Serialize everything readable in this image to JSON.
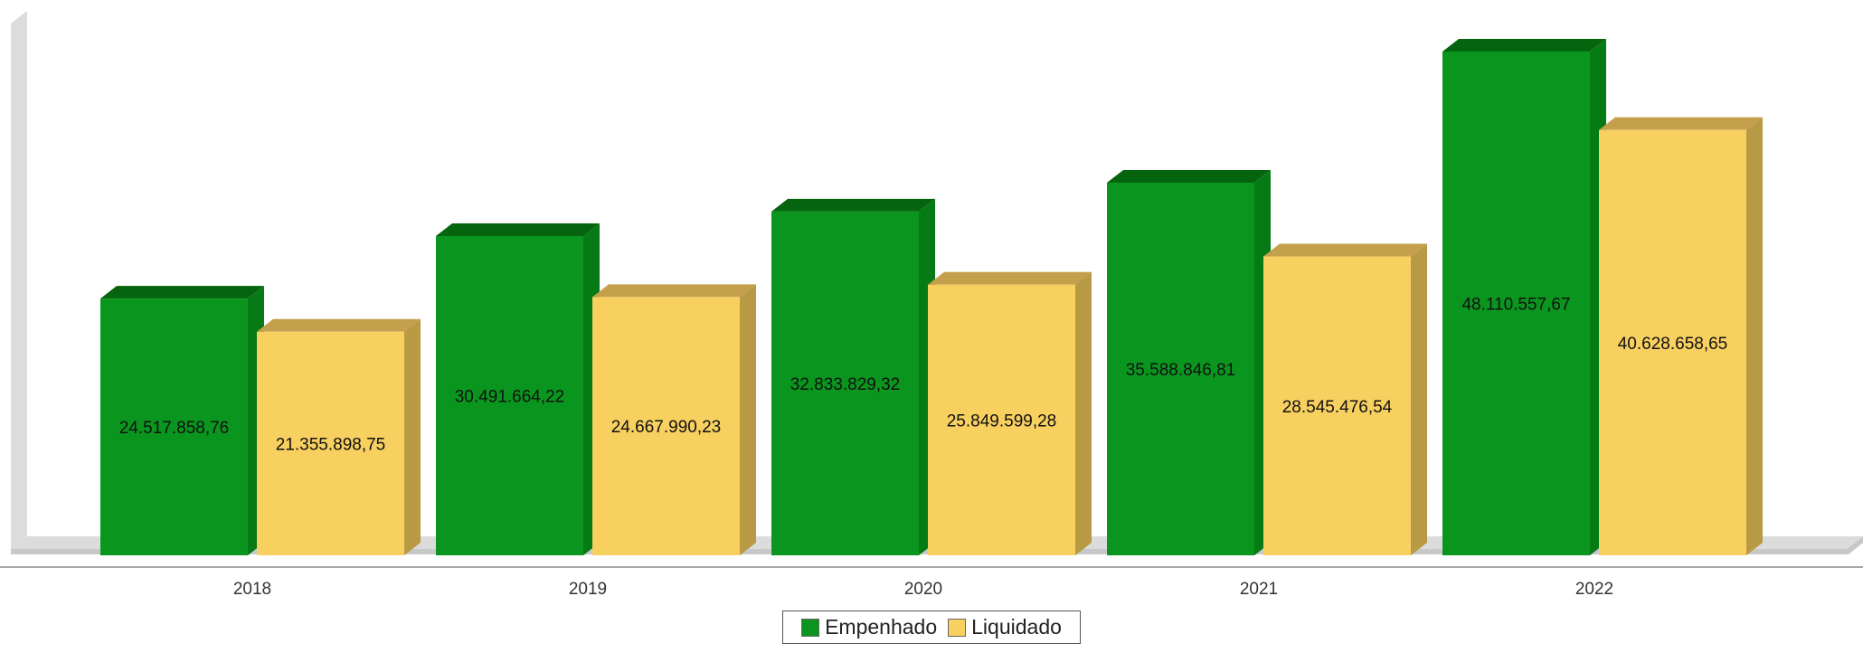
{
  "chart_data": {
    "type": "bar",
    "categories": [
      "2018",
      "2019",
      "2020",
      "2021",
      "2022"
    ],
    "series": [
      {
        "name": "Empenhado",
        "values": [
          24517858.76,
          30491664.22,
          32833829.32,
          35588846.81,
          48110557.67
        ],
        "labels": [
          "24.517.858,76",
          "30.491.664,22",
          "32.833.829,32",
          "35.588.846,81",
          "48.110.557,67"
        ],
        "color": "#0a961e",
        "side_color": "#067a15",
        "top_color": "#05650f"
      },
      {
        "name": "Liquidado",
        "values": [
          21355898.75,
          24667990.23,
          25849599.28,
          28545476.54,
          40628658.65
        ],
        "labels": [
          "21.355.898,75",
          "24.667.990,23",
          "25.849.599,28",
          "28.545.476,54",
          "40.628.658,65"
        ],
        "color": "#f8d060",
        "side_color": "#b89a45",
        "top_color": "#c4a04c"
      }
    ],
    "ylim": [
      0,
      48110557.67
    ],
    "grid": false,
    "legend_position": "bottom-center",
    "style": "3d-column"
  }
}
